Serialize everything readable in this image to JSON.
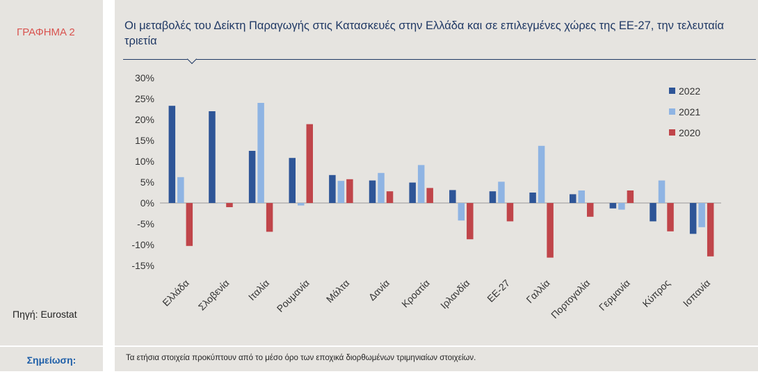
{
  "label_tag": "ΓΡΑΦΗΜΑ 2",
  "source": "Πηγή: Eurostat",
  "title": "Οι μεταβολές του Δείκτη Παραγωγής στις Κατασκευές στην Ελλάδα και σε επιλεγμένες χώρες της ΕΕ-27, την τελευταία τριετία",
  "note_label": "Σημείωση:",
  "note_text": "Τα ετήσια στοιχεία προκύπτουν από το μέσο όρο των εποχικά διορθωμένων τριμηνιαίων στοιχείων.",
  "chart_data": {
    "type": "bar",
    "categories": [
      "Ελλάδα",
      "Σλοβενία",
      "Ιταλία",
      "Ρουμανία",
      "Μάλτα",
      "Δανία",
      "Κροατία",
      "Ιρλανδία",
      "ΕΕ-27",
      "Γαλλία",
      "Πορτογαλία",
      "Γερμανία",
      "Κύπρος",
      "Ισπανία"
    ],
    "series": [
      {
        "name": "2022",
        "color": "#2e5597",
        "values": [
          23.3,
          22.0,
          12.5,
          10.8,
          6.7,
          5.4,
          4.9,
          3.1,
          2.8,
          2.5,
          2.1,
          -1.3,
          -4.4,
          -7.4
        ]
      },
      {
        "name": "2021",
        "color": "#8fb4e3",
        "values": [
          6.2,
          0.0,
          24.0,
          -0.6,
          5.3,
          7.2,
          9.1,
          -4.2,
          5.1,
          13.7,
          3.0,
          -1.6,
          5.4,
          -5.8
        ]
      },
      {
        "name": "2020",
        "color": "#c0454a",
        "values": [
          -10.3,
          -1.0,
          -6.9,
          18.9,
          5.7,
          2.8,
          3.6,
          -8.7,
          -4.4,
          -13.1,
          -3.3,
          3.0,
          -6.8,
          -12.8
        ]
      }
    ],
    "yticks": [
      "30%",
      "25%",
      "20%",
      "15%",
      "10%",
      "5%",
      "0%",
      "-5%",
      "-10%",
      "-15%"
    ],
    "ylim": [
      -15,
      30
    ],
    "legend_position": "top-right",
    "grid": false
  }
}
